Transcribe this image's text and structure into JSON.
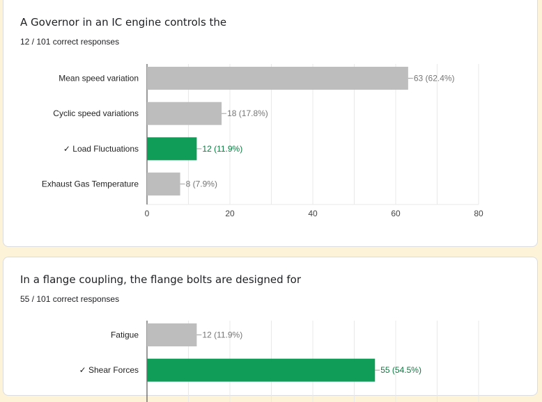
{
  "colors": {
    "neutral_bar": "#bdbdbd",
    "correct_bar": "#109d58",
    "correct_label": "#0b7a3f",
    "value_label": "#757575",
    "grid": "#e8e8e8",
    "axis": "#333333"
  },
  "questions": [
    {
      "title": "A Governor in an IC engine controls the",
      "subtitle": "12 / 101 correct responses"
    },
    {
      "title": "In a flange coupling, the flange bolts are designed for",
      "subtitle": "55 / 101 correct responses"
    }
  ],
  "chart_data": [
    {
      "type": "bar",
      "orientation": "horizontal",
      "categories": [
        "Mean speed variation",
        "Cyclic speed variations",
        "✓ Load Fluctuations",
        "Exhaust Gas Temperature"
      ],
      "values": [
        63,
        18,
        12,
        8
      ],
      "data_labels": [
        "63 (62.4%)",
        "18 (17.8%)",
        "12 (11.9%)",
        "8 (7.9%)"
      ],
      "correct": [
        false,
        false,
        true,
        false
      ],
      "xlim": [
        0,
        80
      ],
      "xticks": [
        "0",
        "20",
        "40",
        "60",
        "80"
      ],
      "grid": true
    },
    {
      "type": "bar",
      "orientation": "horizontal",
      "categories": [
        "Fatigue",
        "✓ Shear Forces"
      ],
      "values": [
        12,
        55
      ],
      "data_labels": [
        "12 (11.9%)",
        "55 (54.5%)"
      ],
      "correct": [
        false,
        true
      ],
      "xlim": [
        0,
        80
      ],
      "grid": true
    }
  ]
}
